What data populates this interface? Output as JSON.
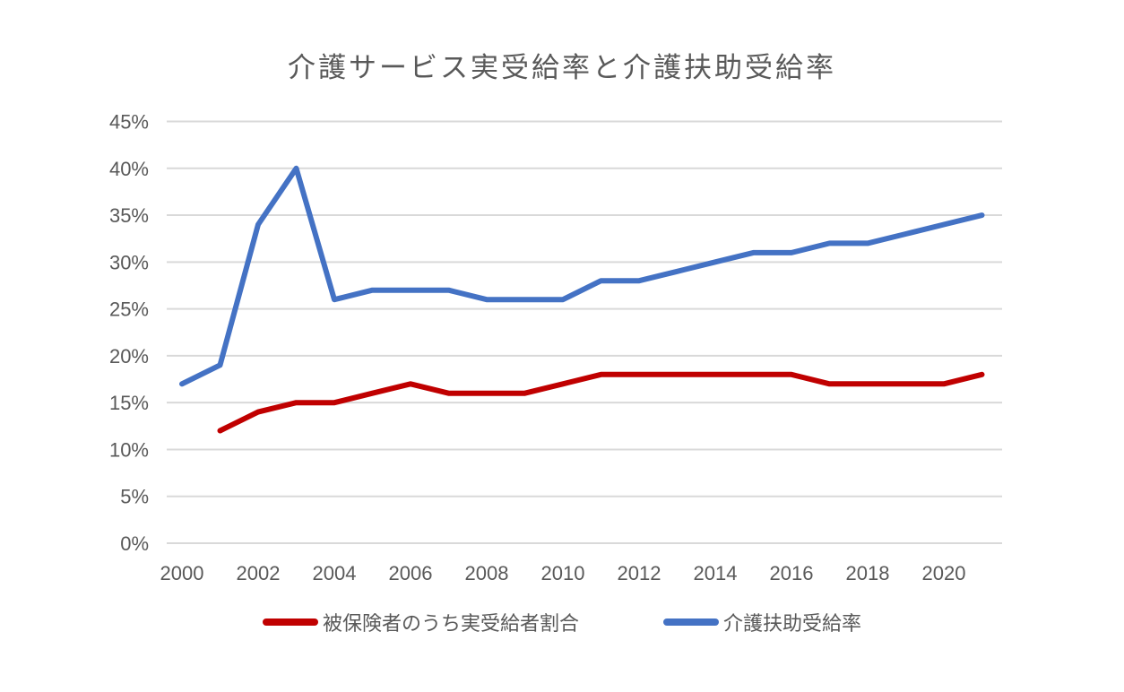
{
  "title": "介護サービス実受給率と介護扶助受給率",
  "colors": {
    "background": "#ffffff",
    "text": "#595959",
    "grid": "#d9d9d9",
    "series_red": "#c00000",
    "series_blue": "#4472c4"
  },
  "chart_data": {
    "type": "line",
    "title": "介護サービス実受給率と介護扶助受給率",
    "xlabel": "",
    "ylabel": "",
    "ylim": [
      0,
      45
    ],
    "xlim": [
      2000,
      2021
    ],
    "grid": true,
    "legend_position": "bottom",
    "yticks": [
      {
        "value": 0,
        "label": "0%"
      },
      {
        "value": 5,
        "label": "5%"
      },
      {
        "value": 10,
        "label": "10%"
      },
      {
        "value": 15,
        "label": "15%"
      },
      {
        "value": 20,
        "label": "20%"
      },
      {
        "value": 25,
        "label": "25%"
      },
      {
        "value": 30,
        "label": "30%"
      },
      {
        "value": 35,
        "label": "35%"
      },
      {
        "value": 40,
        "label": "40%"
      },
      {
        "value": 45,
        "label": "45%"
      }
    ],
    "xticks": [
      {
        "value": 2000,
        "label": "2000"
      },
      {
        "value": 2002,
        "label": "2002"
      },
      {
        "value": 2004,
        "label": "2004"
      },
      {
        "value": 2006,
        "label": "2006"
      },
      {
        "value": 2008,
        "label": "2008"
      },
      {
        "value": 2010,
        "label": "2010"
      },
      {
        "value": 2012,
        "label": "2012"
      },
      {
        "value": 2014,
        "label": "2014"
      },
      {
        "value": 2016,
        "label": "2016"
      },
      {
        "value": 2018,
        "label": "2018"
      },
      {
        "value": 2020,
        "label": "2020"
      }
    ],
    "series": [
      {
        "name": "被保険者のうち実受給者割合",
        "color": "#c00000",
        "x": [
          2001,
          2002,
          2003,
          2004,
          2005,
          2006,
          2007,
          2008,
          2009,
          2010,
          2011,
          2012,
          2013,
          2014,
          2015,
          2016,
          2017,
          2018,
          2019,
          2020,
          2021
        ],
        "values": [
          12,
          14,
          15,
          15,
          16,
          17,
          16,
          16,
          16,
          17,
          18,
          18,
          18,
          18,
          18,
          18,
          17,
          17,
          17,
          17,
          18
        ]
      },
      {
        "name": "介護扶助受給率",
        "color": "#4472c4",
        "x": [
          2000,
          2001,
          2002,
          2003,
          2004,
          2005,
          2006,
          2007,
          2008,
          2009,
          2010,
          2011,
          2012,
          2013,
          2014,
          2015,
          2016,
          2017,
          2018,
          2019,
          2020,
          2021
        ],
        "values": [
          17,
          19,
          34,
          40,
          26,
          27,
          27,
          27,
          26,
          26,
          26,
          28,
          28,
          29,
          30,
          31,
          31,
          32,
          32,
          33,
          34,
          35
        ]
      }
    ]
  }
}
